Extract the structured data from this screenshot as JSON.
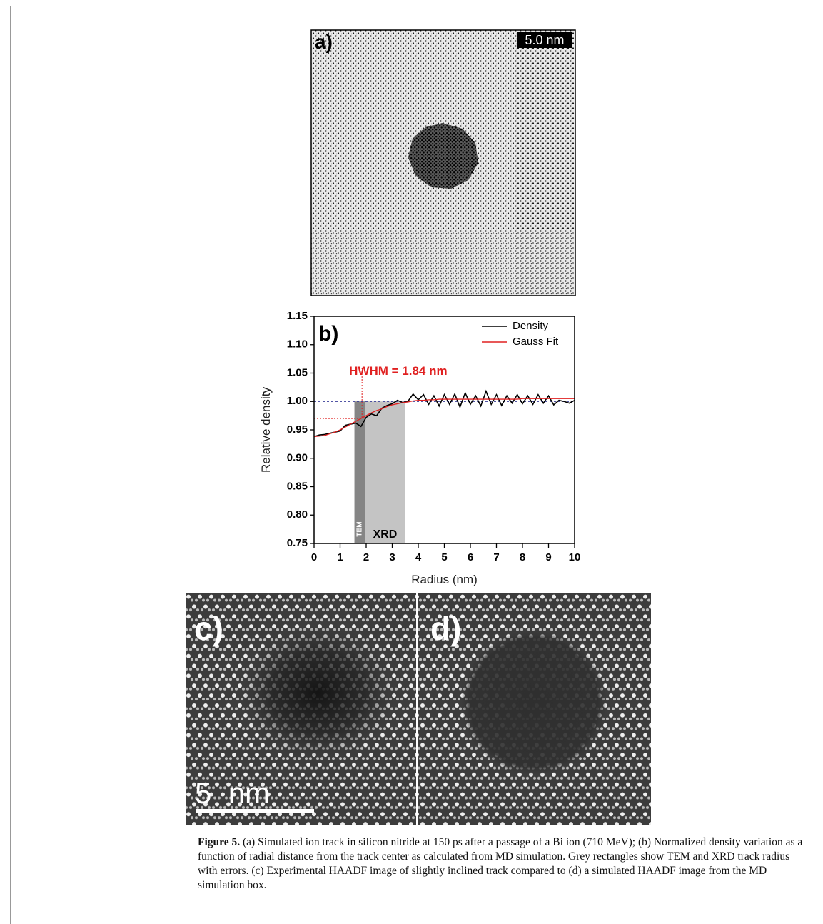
{
  "figure": {
    "panel_a": {
      "label": "a)",
      "scale": "5.0 nm"
    },
    "panel_c": {
      "label": "c)",
      "scale": "5  nm"
    },
    "panel_d": {
      "label": "d)"
    },
    "caption": {
      "label": "Figure 5.",
      "text": "(a) Simulated ion track in silicon nitride at 150 ps after a passage of a Bi ion (710 MeV); (b) Normalized density variation as a function of radial distance from the track center as calculated from MD simulation. Grey rectangles show TEM and XRD track radius with errors. (c) Experimental HAADF image of slightly inclined track compared to (d) a simulated HAADF image from the MD simulation box."
    }
  },
  "chart_data": {
    "type": "line",
    "panel_label": "b)",
    "x_label": "Radius (nm)",
    "y_label": "Relative density",
    "annotation": "HWHM = 1.84 nm",
    "hwhm_point": {
      "x": 1.84,
      "y": 0.97,
      "color": "#e02020"
    },
    "reference_line": {
      "y": 1.0,
      "color": "#3a3f9a"
    },
    "bands": [
      {
        "label": "XRD",
        "x": [
          1.55,
          3.5
        ],
        "color": "#c4c4c4"
      },
      {
        "label": "TEM",
        "x": [
          1.55,
          1.95
        ],
        "color": "#858585"
      }
    ],
    "x": [
      0,
      0.2,
      0.4,
      0.6,
      0.8,
      1,
      1.2,
      1.4,
      1.6,
      1.8,
      2,
      2.2,
      2.4,
      2.6,
      2.8,
      3,
      3.2,
      3.4,
      3.6,
      3.8,
      4,
      4.2,
      4.4,
      4.6,
      4.8,
      5,
      5.2,
      5.4,
      5.6,
      5.8,
      6,
      6.2,
      6.4,
      6.6,
      6.8,
      7,
      7.2,
      7.4,
      7.6,
      7.8,
      8,
      8.2,
      8.4,
      8.6,
      8.8,
      9,
      9.2,
      9.4,
      9.6,
      9.8,
      10
    ],
    "series": [
      {
        "name": "Density",
        "color": "#000000",
        "values": [
          0.938,
          0.941,
          0.942,
          0.944,
          0.946,
          0.948,
          0.958,
          0.96,
          0.962,
          0.956,
          0.972,
          0.978,
          0.975,
          0.988,
          0.993,
          0.996,
          1.002,
          0.998,
          1.0,
          1.013,
          1.003,
          1.012,
          0.995,
          1.01,
          0.992,
          1.012,
          0.995,
          1.013,
          0.99,
          1.015,
          0.995,
          1.01,
          0.992,
          1.018,
          0.995,
          1.012,
          0.993,
          1.01,
          0.997,
          1.012,
          0.996,
          1.01,
          0.995,
          1.012,
          0.997,
          1.01,
          0.994,
          1.002,
          1.0,
          0.997,
          1.002
        ]
      },
      {
        "name": "Gauss Fit",
        "color": "#e02020",
        "values": [
          0.938,
          0.939,
          0.94,
          0.943,
          0.946,
          0.95,
          0.955,
          0.96,
          0.965,
          0.97,
          0.975,
          0.98,
          0.984,
          0.987,
          0.991,
          0.994,
          0.996,
          0.998,
          0.999,
          1.001,
          1.002,
          1.002,
          1.003,
          1.003,
          1.004,
          1.004,
          1.004,
          1.004,
          1.004,
          1.004,
          1.004,
          1.004,
          1.004,
          1.004,
          1.004,
          1.004,
          1.004,
          1.004,
          1.004,
          1.004,
          1.005,
          1.005,
          1.005,
          1.005,
          1.005,
          1.005,
          1.005,
          1.005,
          1.005,
          1.005,
          1.005
        ]
      }
    ],
    "xlim": [
      0,
      10
    ],
    "ylim": [
      0.75,
      1.15
    ],
    "xticks": [
      0,
      1,
      2,
      3,
      4,
      5,
      6,
      7,
      8,
      9,
      10
    ],
    "yticks": [
      0.75,
      {
        "value": 0.8,
        "label": "0.80"
      },
      0.85,
      {
        "value": 0.9,
        "label": "0.90"
      },
      0.95,
      {
        "value": 1.0,
        "label": "1.00"
      },
      1.05,
      {
        "value": 1.1,
        "label": "1.10"
      },
      1.15
    ],
    "legend": "upper right"
  }
}
